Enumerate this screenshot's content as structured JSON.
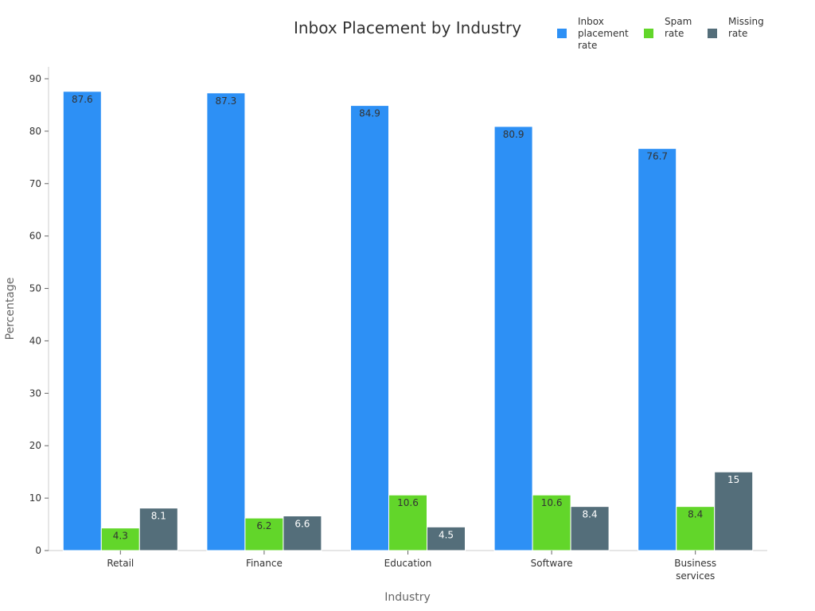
{
  "chart_data": {
    "type": "bar",
    "title": "Inbox Placement by Industry",
    "xlabel": "Industry",
    "ylabel": "Percentage",
    "categories": [
      [
        "Retail"
      ],
      [
        "Finance"
      ],
      [
        "Education"
      ],
      [
        "Software"
      ],
      [
        "Business",
        "services"
      ]
    ],
    "series": [
      {
        "name": [
          "Inbox",
          "placement",
          "rate"
        ],
        "color": "#2d90f5",
        "label_color": "#333333",
        "values": [
          87.6,
          87.3,
          84.9,
          80.9,
          76.7
        ]
      },
      {
        "name": [
          "Spam",
          "rate"
        ],
        "color": "#62d62a",
        "label_color": "#333333",
        "values": [
          4.3,
          6.2,
          10.6,
          10.6,
          8.4
        ]
      },
      {
        "name": [
          "Missing",
          "rate"
        ],
        "color": "#546e7a",
        "label_color": "#ffffff",
        "values": [
          8.1,
          6.6,
          4.5,
          8.4,
          15
        ]
      }
    ],
    "ylim": [
      0,
      90
    ],
    "yticks": [
      0,
      10,
      20,
      30,
      40,
      50,
      60,
      70,
      80,
      90
    ],
    "grid": false,
    "legend_position": "top-right"
  }
}
